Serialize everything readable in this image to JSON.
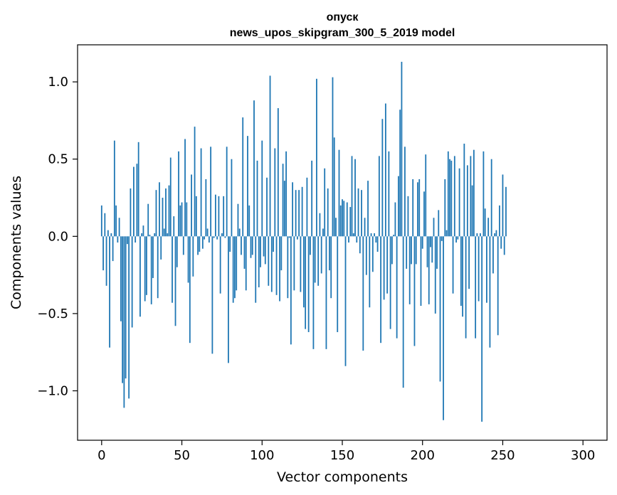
{
  "chart_data": {
    "type": "bar",
    "title": "опуск\nnews_upos_skipgram_300_5_2019 model",
    "title_lines": [
      "опуск",
      "news_upos_skipgram_300_5_2019 model"
    ],
    "xlabel": "Vector components",
    "ylabel": "Components values",
    "xlim": [
      -15,
      315
    ],
    "ylim": [
      -1.32,
      1.24
    ],
    "xticks": [
      0,
      50,
      100,
      150,
      200,
      250,
      300
    ],
    "yticks": [
      -1.0,
      -0.5,
      0.0,
      0.5,
      1.0
    ],
    "ytick_labels": [
      "−1.0",
      "−0.5",
      "0.0",
      "0.5",
      "1.0"
    ],
    "grid": false,
    "color": "#1f77b4",
    "x_start": 0,
    "values": [
      0.2,
      -0.22,
      0.15,
      -0.32,
      0.04,
      -0.72,
      0.02,
      -0.16,
      0.62,
      0.2,
      -0.04,
      0.12,
      -0.55,
      -0.95,
      -1.11,
      -0.92,
      -0.05,
      -1.05,
      0.31,
      -0.59,
      0.45,
      -0.04,
      0.47,
      0.61,
      -0.52,
      0.02,
      0.07,
      -0.42,
      -0.38,
      0.21,
      0.01,
      -0.44,
      -0.27,
      0.02,
      0.3,
      -0.4,
      0.35,
      -0.15,
      0.25,
      0.05,
      0.31,
      0.02,
      0.33,
      0.51,
      -0.43,
      0.13,
      -0.58,
      -0.2,
      0.55,
      0.2,
      0.22,
      -0.12,
      0.63,
      0.22,
      -0.3,
      -0.69,
      0.4,
      -0.26,
      0.71,
      0.26,
      -0.12,
      -0.1,
      0.57,
      -0.08,
      -0.02,
      0.37,
      0.05,
      -0.04,
      0.58,
      -0.76,
      -0.01,
      0.27,
      -0.02,
      0.26,
      -0.37,
      0.02,
      0.26,
      -0.01,
      0.58,
      -0.82,
      -0.1,
      0.5,
      -0.43,
      -0.4,
      -0.35,
      0.21,
      0.05,
      -0.12,
      0.77,
      -0.21,
      -0.35,
      0.65,
      0.2,
      -0.14,
      -0.12,
      0.88,
      -0.43,
      0.49,
      -0.33,
      -0.2,
      0.62,
      -0.13,
      -0.18,
      0.38,
      -0.32,
      1.04,
      -0.36,
      -0.1,
      0.57,
      -0.38,
      0.83,
      -0.42,
      -0.22,
      0.47,
      0.36,
      0.55,
      -0.4,
      -0.01,
      -0.7,
      0.35,
      -0.35,
      0.3,
      -0.02,
      0.3,
      -0.36,
      0.32,
      -0.46,
      -0.6,
      0.38,
      -0.62,
      -0.12,
      0.49,
      -0.73,
      -0.3,
      1.02,
      -0.32,
      0.15,
      -0.24,
      0.05,
      0.44,
      -0.73,
      0.31,
      -0.22,
      -0.4,
      1.03,
      0.64,
      0.12,
      -0.62,
      0.56,
      0.2,
      0.24,
      0.23,
      -0.84,
      0.22,
      -0.04,
      0.19,
      0.52,
      0.02,
      0.5,
      -0.04,
      0.31,
      -0.11,
      0.3,
      -0.74,
      0.12,
      -0.25,
      0.36,
      -0.46,
      0.02,
      -0.23,
      0.02,
      -0.04,
      -0.1,
      0.52,
      -0.69,
      0.76,
      -0.41,
      0.86,
      -0.37,
      0.55,
      -0.6,
      -0.18,
      0.01,
      0.22,
      -0.66,
      0.39,
      0.82,
      1.13,
      -0.98,
      0.58,
      -0.21,
      0.26,
      -0.44,
      -0.18,
      0.37,
      -0.71,
      -0.18,
      0.35,
      0.37,
      -0.45,
      -0.08,
      0.29,
      0.53,
      -0.2,
      -0.44,
      -0.07,
      -0.17,
      0.12,
      -0.5,
      -0.21,
      0.17,
      -0.94,
      -0.03,
      -1.19,
      0.37,
      0.04,
      0.55,
      0.5,
      0.49,
      -0.37,
      0.52,
      -0.04,
      -0.02,
      0.44,
      -0.45,
      -0.52,
      0.6,
      -0.66,
      0.46,
      -0.34,
      0.52,
      0.33,
      0.56,
      -0.66,
      0.02,
      -0.42,
      0.02,
      -1.2,
      0.55,
      0.18,
      -0.43,
      0.12,
      -0.72,
      0.5,
      -0.24,
      0.02,
      0.04,
      -0.64,
      0.2,
      -0.08,
      0.4,
      -0.12,
      0.32
    ]
  }
}
